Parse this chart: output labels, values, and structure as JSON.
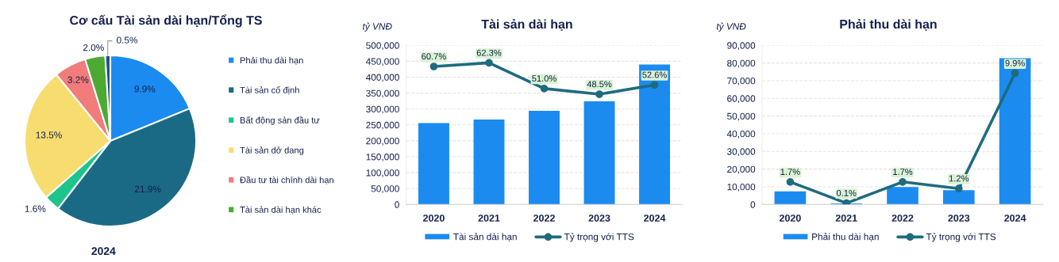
{
  "chart_data": [
    {
      "type": "pie",
      "title": "Cơ cấu Tài sản dài hạn/Tổng TS",
      "xlabel": "2024",
      "categories": [
        "Phải thu dài hạn",
        "Tài sản cố định",
        "Bất động sản đầu tư",
        "Tài sản dở dang",
        "Đầu tư tài chính dài hạn",
        "Tài sản dài hạn khác",
        null
      ],
      "values": [
        9.9,
        21.9,
        1.6,
        13.5,
        3.2,
        2.0,
        0.5
      ],
      "value_labels": [
        "9.9%",
        "21.9%",
        "1.6%",
        "13.5%",
        "3.2%",
        "2.0%",
        "0.5%"
      ],
      "colors": [
        "#1b8bf0",
        "#1b6a85",
        "#1dc48c",
        "#f7dc6f",
        "#f27b7b",
        "#4caa34",
        "#1a4f8f"
      ],
      "legend": "right"
    },
    {
      "type": "bar",
      "title": "Tài sản dài hạn",
      "ylabel": "tỷ VNĐ",
      "categories": [
        "2020",
        "2021",
        "2022",
        "2023",
        "2024"
      ],
      "series": [
        {
          "name": "Tài sản dài hạn",
          "type": "bar",
          "color": "#1b8bf0",
          "values": [
            256000,
            267000,
            294000,
            324000,
            440000
          ]
        },
        {
          "name": "Tỷ trọng với TTS",
          "type": "line",
          "color": "#1e6b80",
          "axis": "y2",
          "marker": "circle",
          "values": [
            60.7,
            62.3,
            51.0,
            48.5,
            52.6
          ],
          "value_labels": [
            "60.7%",
            "62.3%",
            "51.0%",
            "48.5%",
            "52.6%"
          ]
        }
      ],
      "ylim": [
        0,
        500000
      ],
      "yticks": [
        0,
        {
          "value": 50000,
          "label": "50,000"
        },
        {
          "value": 100000,
          "label": "100,000"
        },
        {
          "value": 150000,
          "label": "150,000"
        },
        {
          "value": 200000,
          "label": "200,000"
        },
        {
          "value": 250000,
          "label": "250,000"
        },
        {
          "value": 300000,
          "label": "300,000"
        },
        {
          "value": 350000,
          "label": "350,000"
        },
        {
          "value": 400000,
          "label": "400,000"
        },
        {
          "value": 450000,
          "label": "450,000"
        },
        {
          "value": 500000,
          "label": "500,000"
        }
      ],
      "y2lim": [
        0,
        70
      ],
      "grid": "y",
      "legend": "bottom"
    },
    {
      "type": "bar",
      "title": "Phải thu dài hạn",
      "ylabel": "tỷ VNĐ",
      "categories": [
        "2020",
        "2021",
        "2022",
        "2023",
        "2024"
      ],
      "series": [
        {
          "name": "Phải thu dài hạn",
          "type": "bar",
          "color": "#1b8bf0",
          "values": [
            7400,
            600,
            9900,
            8100,
            82700
          ]
        },
        {
          "name": "Tỷ trọng với TTS",
          "type": "line",
          "color": "#1e6b80",
          "axis": "y2",
          "marker": "circle",
          "values": [
            1.7,
            0.1,
            1.7,
            1.2,
            9.9
          ],
          "value_labels": [
            "1.7%",
            "0.1%",
            "1.7%",
            "1.2%",
            "9.9%"
          ]
        }
      ],
      "ylim": [
        0,
        90000
      ],
      "yticks": [
        0,
        {
          "value": 10000,
          "label": "10,000"
        },
        {
          "value": 20000,
          "label": "20,000"
        },
        {
          "value": 30000,
          "label": "30,000"
        },
        {
          "value": 40000,
          "label": "40,000"
        },
        {
          "value": 50000,
          "label": "50,000"
        },
        {
          "value": 60000,
          "label": "60,000"
        },
        {
          "value": 70000,
          "label": "70,000"
        },
        {
          "value": 80000,
          "label": "80,000"
        },
        {
          "value": 90000,
          "label": "90,000"
        }
      ],
      "y2lim": [
        0,
        12
      ],
      "grid": "y",
      "legend": "bottom"
    }
  ]
}
